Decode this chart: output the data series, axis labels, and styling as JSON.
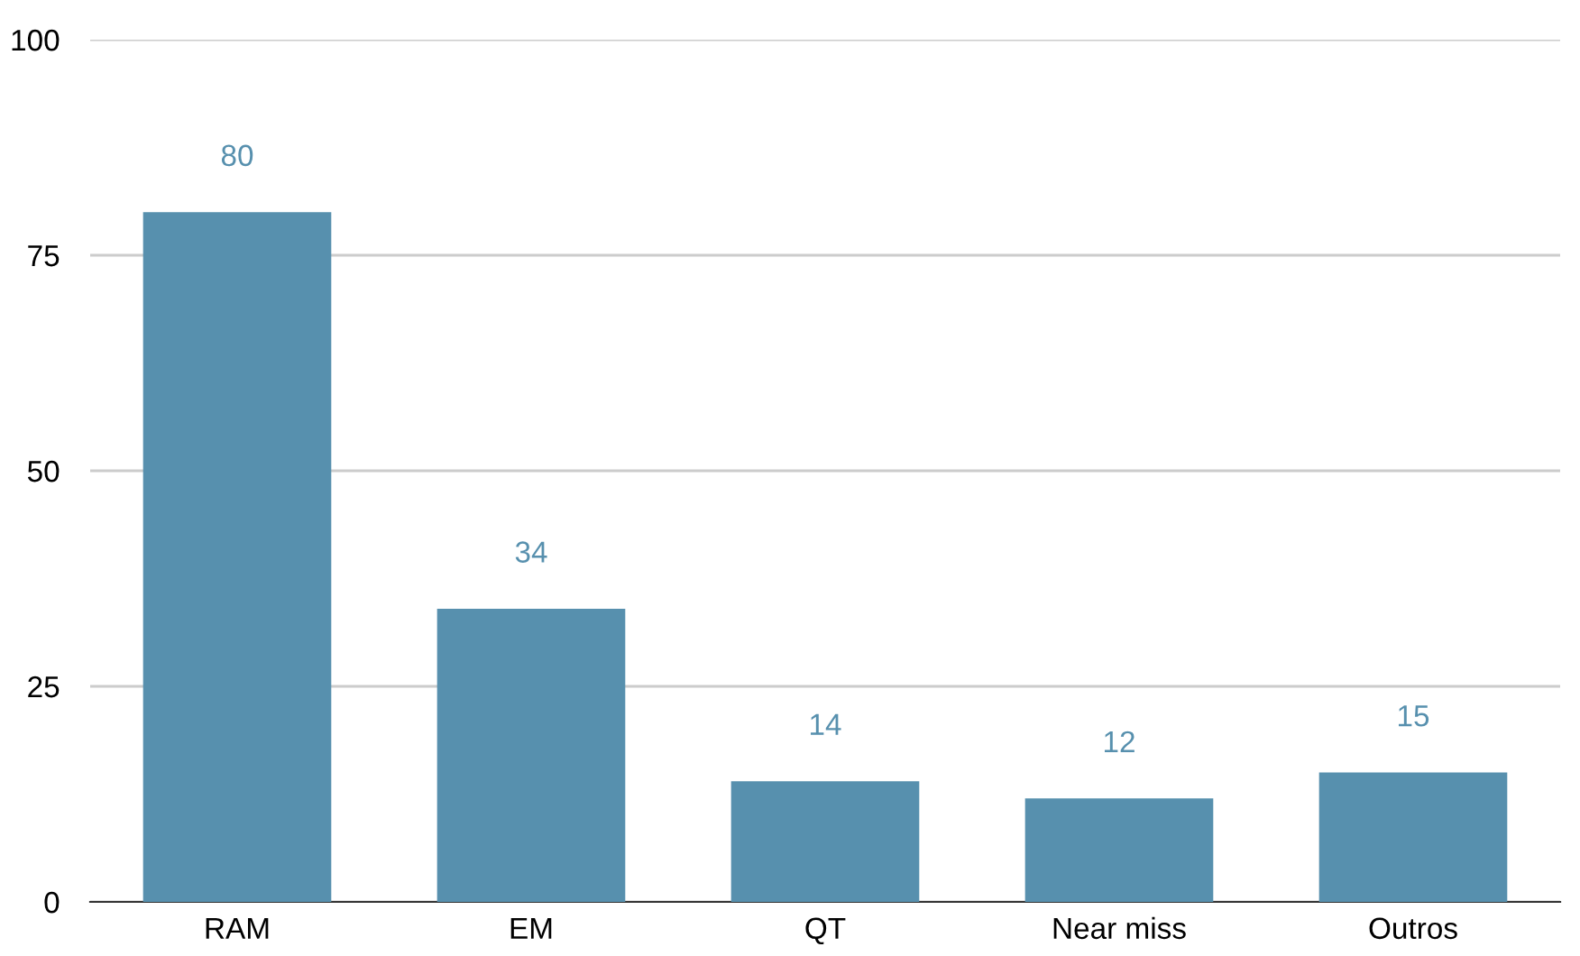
{
  "chart_data": {
    "type": "bar",
    "categories": [
      "RAM",
      "EM",
      "QT",
      "Near miss",
      "Outros"
    ],
    "values": [
      80,
      34,
      14,
      12,
      15
    ],
    "color": "#5790ae",
    "ylim": [
      0,
      100
    ],
    "yticks": [
      0,
      25,
      50,
      75,
      100
    ],
    "grid": "y",
    "data_labels": true
  }
}
